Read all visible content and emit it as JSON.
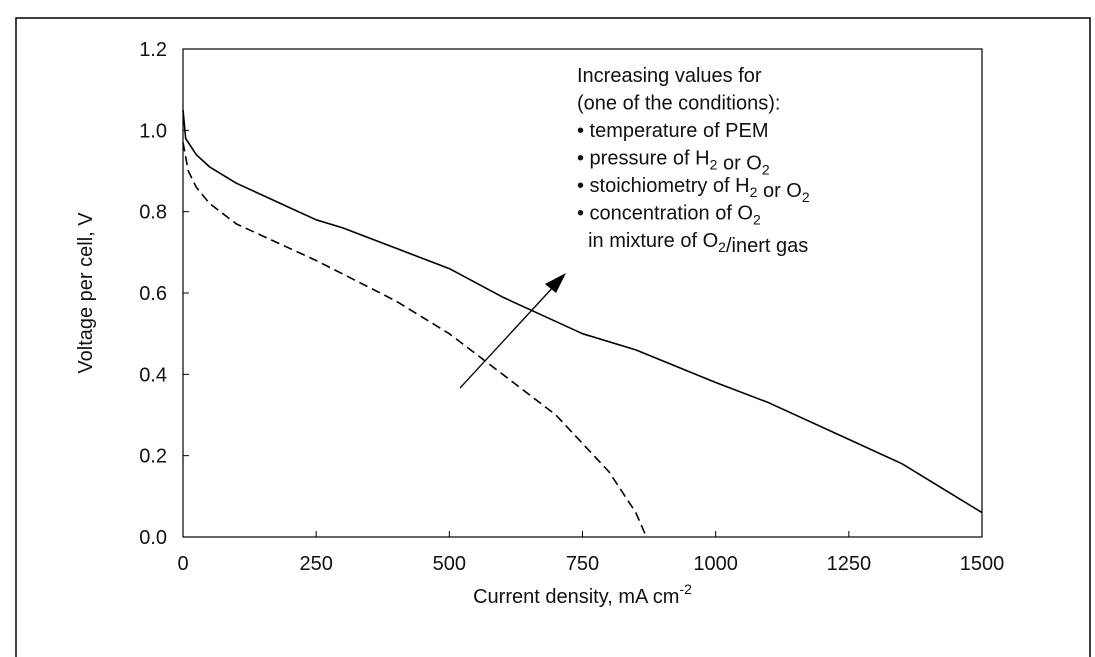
{
  "chart_data": {
    "type": "line",
    "xlabel": [
      "Current density, mA cm",
      {
        "sup": "-2"
      }
    ],
    "ylabel": "Voltage per cell, V",
    "xlim": [
      0,
      1500
    ],
    "xticks": [
      0,
      250,
      500,
      750,
      1000,
      1250,
      1500
    ],
    "ylim": [
      0,
      1.2
    ],
    "yticks": [
      {
        "value": 0,
        "label": "0.0"
      },
      0.2,
      0.4,
      0.6,
      0.8,
      {
        "value": 1,
        "label": "1.0"
      },
      1.2
    ],
    "series": [
      {
        "color": "#000000",
        "dash": false,
        "x": [
          0,
          5,
          25,
          50,
          100,
          150,
          200,
          250,
          300,
          400,
          500,
          600,
          650,
          750,
          850,
          1000,
          1100,
          1250,
          1350,
          1500
        ],
        "values": [
          1.05,
          0.98,
          0.94,
          0.91,
          0.87,
          0.84,
          0.81,
          0.78,
          0.76,
          0.71,
          0.66,
          0.59,
          0.56,
          0.5,
          0.46,
          0.38,
          0.33,
          0.24,
          0.18,
          0.06
        ]
      },
      {
        "color": "#000000",
        "dash": true,
        "x": [
          0,
          10,
          25,
          50,
          100,
          150,
          250,
          400,
          500,
          550,
          600,
          700,
          800,
          850,
          870
        ],
        "values": [
          0.97,
          0.9,
          0.86,
          0.82,
          0.77,
          0.74,
          0.68,
          0.58,
          0.5,
          0.45,
          0.4,
          0.3,
          0.16,
          0.06,
          0.0
        ]
      }
    ],
    "annotation": [
      [
        "Increasing values for"
      ],
      [
        "(one of the conditions):"
      ],
      [
        "• temperature of PEM"
      ],
      [
        "• pressure of H",
        {
          "sub": "2"
        },
        " or O",
        {
          "sub": "2"
        }
      ],
      [
        "• stoichiometry of H",
        {
          "sub": "2"
        },
        " or O",
        {
          "sub": "2"
        }
      ],
      [
        "• concentration of O",
        {
          "sub": "2"
        }
      ],
      [
        "  in mixture of O",
        {
          "sub": "2"
        },
        "/inert gas"
      ]
    ]
  }
}
